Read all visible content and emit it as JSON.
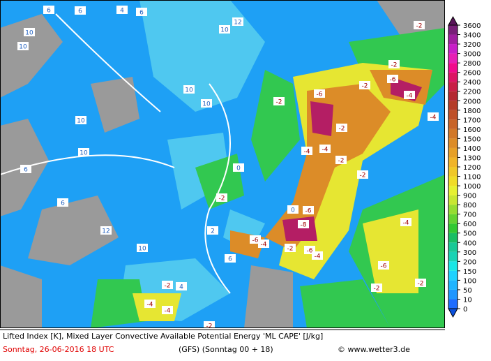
{
  "title": "Lifted Index [K], Mixed Layer Convective Available Potential Energy 'ML CAPE' [J/kg]",
  "date": "Sonntag, 26-06-2016  18 UTC",
  "model": "(GFS)  (Sonntag 00 + 18)",
  "credit": "© www.wetter3.de",
  "colorbar": {
    "levels": [
      "0",
      "10",
      "50",
      "100",
      "150",
      "200",
      "300",
      "400",
      "500",
      "600",
      "700",
      "800",
      "900",
      "1000",
      "1100",
      "1200",
      "1300",
      "1400",
      "1500",
      "1600",
      "1700",
      "1800",
      "2000",
      "2200",
      "2400",
      "2600",
      "2800",
      "3000",
      "3200",
      "3400",
      "3600"
    ],
    "colors": [
      "#1e6cff",
      "#1e96ff",
      "#1eb4ff",
      "#1ed2ff",
      "#19e6e6",
      "#19d2b4",
      "#19c896",
      "#19be64",
      "#32c832",
      "#64d232",
      "#96dc32",
      "#c8e632",
      "#e6f032",
      "#f0dc28",
      "#f0c828",
      "#f0b428",
      "#e6a028",
      "#dc8c28",
      "#d27828",
      "#c86428",
      "#be5028",
      "#b43c28",
      "#b42832",
      "#c81e46",
      "#dc1464",
      "#f00a8c",
      "#e61eb4",
      "#c81ec8",
      "#a01ea0",
      "#781e78"
    ]
  },
  "contour_labels": [
    "10",
    "10",
    "6",
    "6",
    "4",
    "6",
    "10",
    "12",
    "10",
    "10",
    "10",
    "10",
    "6",
    "6",
    "12",
    "10",
    "4",
    "6",
    "0",
    "-2",
    "2",
    "0",
    "-6",
    "-2",
    "-4",
    "-4",
    "-2",
    "-2",
    "-6",
    "-8",
    "-6",
    "-4",
    "-2",
    "-6",
    "-4",
    "-2",
    "-6",
    "-2",
    "-4",
    "-4",
    "-2",
    "-2",
    "-4",
    "-4",
    "-2",
    "-6",
    "-4",
    "-2",
    "-2",
    "-2"
  ]
}
